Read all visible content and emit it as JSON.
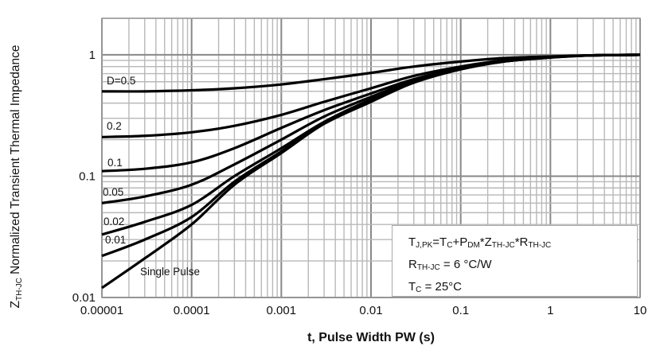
{
  "chart_data": {
    "type": "line",
    "xlabel": "t, Pulse Width PW (s)",
    "ylabel": {
      "main": "Z",
      "sub": "TH-JC",
      "rest": " Normalized Transient Thermal Impedance"
    },
    "xscale": "log",
    "yscale": "log",
    "xlim": [
      1e-05,
      10
    ],
    "ylim": [
      0.01,
      2
    ],
    "grid": true,
    "x_ticks": [
      "0.00001",
      "0.0001",
      "0.001",
      "0.01",
      "0.1",
      "1",
      "10"
    ],
    "y_ticks": [
      "0.01",
      "0.1",
      "1"
    ],
    "x": [
      1e-05,
      3e-05,
      0.0001,
      0.0003,
      0.001,
      0.003,
      0.01,
      0.03,
      0.1,
      0.3,
      1,
      3,
      10
    ],
    "series": [
      {
        "name": "D=0.5",
        "values": [
          0.5,
          0.5,
          0.51,
          0.53,
          0.57,
          0.63,
          0.71,
          0.8,
          0.88,
          0.94,
          0.97,
          0.99,
          1.0
        ]
      },
      {
        "name": "0.2",
        "values": [
          0.21,
          0.215,
          0.23,
          0.26,
          0.32,
          0.41,
          0.53,
          0.67,
          0.8,
          0.9,
          0.96,
          0.99,
          1.0
        ]
      },
      {
        "name": "0.1",
        "values": [
          0.11,
          0.115,
          0.13,
          0.17,
          0.25,
          0.35,
          0.48,
          0.63,
          0.78,
          0.89,
          0.96,
          0.99,
          1.0
        ]
      },
      {
        "name": "0.05",
        "values": [
          0.06,
          0.068,
          0.085,
          0.125,
          0.2,
          0.31,
          0.45,
          0.61,
          0.77,
          0.88,
          0.955,
          0.99,
          1.0
        ]
      },
      {
        "name": "0.02",
        "values": [
          0.033,
          0.042,
          0.058,
          0.1,
          0.17,
          0.28,
          0.43,
          0.6,
          0.76,
          0.88,
          0.955,
          0.99,
          1.0
        ]
      },
      {
        "name": "0.01",
        "values": [
          0.022,
          0.03,
          0.046,
          0.09,
          0.16,
          0.275,
          0.42,
          0.59,
          0.76,
          0.88,
          0.95,
          0.99,
          1.0
        ]
      },
      {
        "name": "Single Pulse",
        "values": [
          0.012,
          0.021,
          0.04,
          0.085,
          0.155,
          0.27,
          0.41,
          0.59,
          0.76,
          0.88,
          0.95,
          0.99,
          1.0
        ]
      }
    ],
    "series_colors": "#000000",
    "annotation": {
      "line1": {
        "a": "T",
        "a_sub": "J,PK",
        "b": "=T",
        "b_sub": "C",
        "c": "+P",
        "c_sub": "DM",
        "d": "*Z",
        "d_sub": "TH-JC",
        "e": "*R",
        "e_sub": "TH-JC"
      },
      "line2": {
        "a": "R",
        "a_sub": "TH-JC",
        "b": " = 6 °C/W"
      },
      "line3": {
        "a": "T",
        "a_sub": "C",
        "b": " = 25°C"
      }
    }
  }
}
